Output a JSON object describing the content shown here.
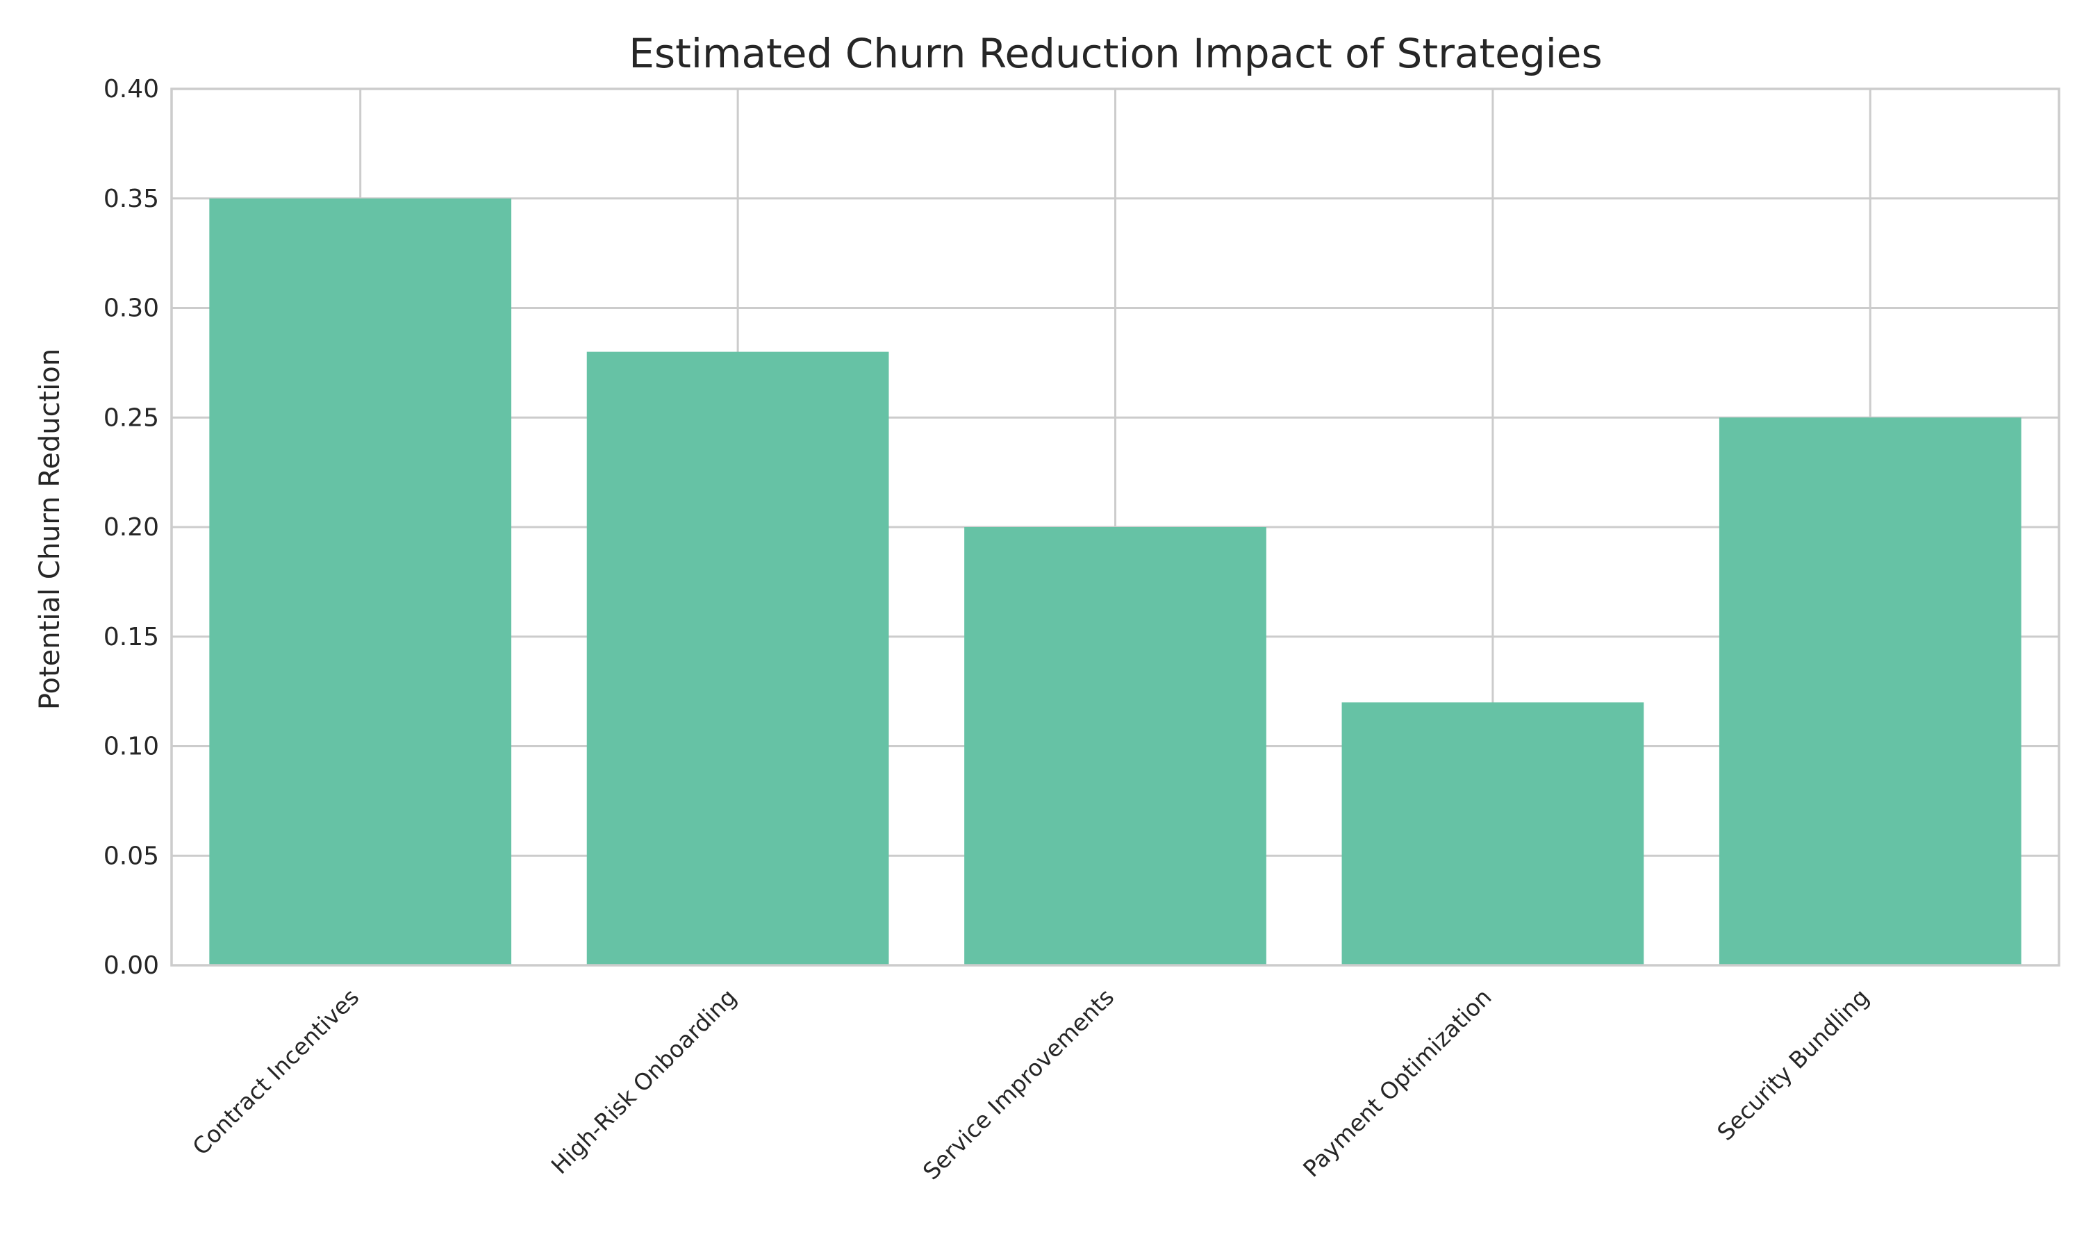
{
  "chart_data": {
    "type": "bar",
    "title": "Estimated Churn Reduction Impact of Strategies",
    "xlabel": "",
    "ylabel": "Potential Churn Reduction",
    "categories": [
      "Contract Incentives",
      "High-Risk Onboarding",
      "Service Improvements",
      "Payment Optimization",
      "Security Bundling"
    ],
    "values": [
      0.35,
      0.28,
      0.2,
      0.12,
      0.25
    ],
    "ylim": [
      0,
      0.4
    ],
    "yticks": [
      "0.00",
      "0.05",
      "0.10",
      "0.15",
      "0.20",
      "0.25",
      "0.30",
      "0.35",
      "0.40"
    ],
    "grid": true,
    "legend": "none",
    "bar_color": "#66c2a5",
    "grid_color": "#cccccc",
    "text_color": "#262626"
  }
}
